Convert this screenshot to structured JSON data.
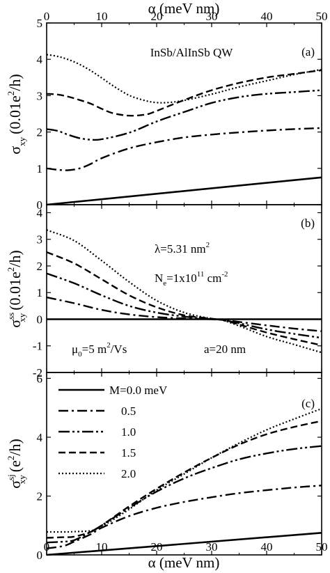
{
  "top_axis_label": "α (meV nm)",
  "bottom_axis_label": "α (meV nm)",
  "legend": {
    "title": "M=0.0  meV",
    "entries": [
      "0.5",
      "1.0",
      "1.5",
      "2.0"
    ]
  },
  "chart_data": [
    {
      "panel": "(a)",
      "type": "line",
      "annotation": "InSb/AlInSb QW",
      "ylabel": {
        "sym": "σ",
        "sub": "xy",
        "rest": "(0.01e",
        "sup": "2",
        "tail": "/h)"
      },
      "xlim": [
        0,
        50
      ],
      "ylim": [
        0,
        5
      ],
      "xticks": [
        0,
        10,
        20,
        30,
        40,
        50
      ],
      "yticks": [
        0,
        1,
        2,
        3,
        4,
        5
      ],
      "series": [
        {
          "name": "M=0.0  meV",
          "x": [
            0,
            50
          ],
          "y": [
            0.0,
            0.75
          ]
        },
        {
          "name": "0.5",
          "x": [
            0,
            2,
            4,
            6,
            8,
            10,
            15,
            20,
            25,
            30,
            35,
            40,
            45,
            50
          ],
          "y": [
            1.0,
            0.96,
            0.95,
            1.0,
            1.12,
            1.28,
            1.55,
            1.72,
            1.85,
            1.93,
            1.99,
            2.04,
            2.08,
            2.11
          ]
        },
        {
          "name": "1.0",
          "x": [
            0,
            2,
            4,
            6,
            8,
            10,
            15,
            20,
            25,
            30,
            35,
            40,
            45,
            50
          ],
          "y": [
            2.08,
            2.03,
            1.92,
            1.83,
            1.79,
            1.8,
            1.98,
            2.29,
            2.55,
            2.8,
            2.96,
            3.05,
            3.1,
            3.15
          ]
        },
        {
          "name": "1.5",
          "x": [
            0,
            2,
            4,
            6,
            8,
            10,
            12,
            15,
            18,
            20,
            25,
            30,
            35,
            40,
            45,
            50
          ],
          "y": [
            3.05,
            3.03,
            2.97,
            2.88,
            2.78,
            2.64,
            2.52,
            2.45,
            2.48,
            2.58,
            2.88,
            3.15,
            3.35,
            3.5,
            3.6,
            3.7
          ]
        },
        {
          "name": "2.0",
          "x": [
            0,
            2,
            4,
            6,
            8,
            10,
            12,
            15,
            18,
            20,
            22,
            25,
            30,
            35,
            40,
            45,
            50
          ],
          "y": [
            4.13,
            4.08,
            3.99,
            3.86,
            3.69,
            3.49,
            3.28,
            3.01,
            2.86,
            2.81,
            2.81,
            2.87,
            3.04,
            3.24,
            3.41,
            3.58,
            3.72
          ]
        }
      ]
    },
    {
      "panel": "(b)",
      "type": "line",
      "annotations": {
        "lambda": {
          "pre": "λ=5.31 nm",
          "sup": "2"
        },
        "ne": {
          "pre": "N",
          "sub": "e",
          "mid": "=1x10",
          "sup": "11",
          "post": " cm",
          "sup2": "-2"
        },
        "mu": {
          "pre": "μ",
          "sub": "0",
          "mid": "=5 m",
          "sup": "2",
          "post": "/Vs"
        },
        "a": "a=20 nm"
      },
      "ylabel": {
        "sym": "σ",
        "sub": "xy",
        "sup1": "ss",
        "rest": "(0.01e",
        "sup": "2",
        "tail": "/h)"
      },
      "xlim": [
        0,
        50
      ],
      "ylim": [
        -2,
        4.3
      ],
      "xticks": [
        0,
        10,
        20,
        30,
        40,
        50
      ],
      "yticks": [
        -2,
        -1,
        0,
        1,
        2,
        3,
        4
      ],
      "series": [
        {
          "name": "M=0.0  meV",
          "x": [
            0,
            50
          ],
          "y": [
            0,
            0
          ]
        },
        {
          "name": "0.5",
          "x": [
            0,
            5,
            10,
            15,
            20,
            25,
            30,
            32,
            35,
            40,
            45,
            50
          ],
          "y": [
            0.82,
            0.6,
            0.35,
            0.18,
            0.08,
            0.03,
            0.0,
            -0.02,
            -0.1,
            -0.23,
            -0.35,
            -0.45
          ]
        },
        {
          "name": "1.0",
          "x": [
            0,
            5,
            10,
            15,
            20,
            25,
            30,
            32,
            35,
            40,
            45,
            50
          ],
          "y": [
            1.72,
            1.35,
            0.9,
            0.5,
            0.25,
            0.1,
            0.0,
            -0.03,
            -0.15,
            -0.38,
            -0.55,
            -0.7
          ]
        },
        {
          "name": "1.5",
          "x": [
            0,
            5,
            10,
            15,
            20,
            25,
            30,
            32,
            35,
            40,
            45,
            50
          ],
          "y": [
            2.52,
            2.1,
            1.5,
            0.9,
            0.45,
            0.15,
            0.02,
            -0.03,
            -0.2,
            -0.5,
            -0.75,
            -0.98
          ]
        },
        {
          "name": "2.0",
          "x": [
            0,
            5,
            10,
            15,
            20,
            25,
            30,
            32,
            35,
            40,
            45,
            50
          ],
          "y": [
            3.35,
            2.95,
            2.2,
            1.4,
            0.7,
            0.25,
            0.02,
            -0.04,
            -0.25,
            -0.65,
            -0.95,
            -1.25
          ]
        }
      ]
    },
    {
      "panel": "(c)",
      "type": "line",
      "ylabel": {
        "sym": "σ",
        "sub": "xy",
        "sup1": "sj",
        "rest": "(e",
        "sup": "2",
        "tail": "/h)"
      },
      "xlabel": "α (meV nm)",
      "xlim": [
        0,
        50
      ],
      "ylim": [
        0,
        6.2
      ],
      "xticks": [
        0,
        10,
        20,
        30,
        40,
        50
      ],
      "yticks": [
        0,
        2,
        4,
        6
      ],
      "series": [
        {
          "name": "M=0.0  meV",
          "x": [
            0,
            50
          ],
          "y": [
            0.0,
            0.75
          ]
        },
        {
          "name": "0.5",
          "x": [
            0,
            3,
            5,
            8,
            10,
            15,
            20,
            25,
            30,
            35,
            40,
            45,
            50
          ],
          "y": [
            0.22,
            0.3,
            0.45,
            0.7,
            0.92,
            1.32,
            1.6,
            1.8,
            1.96,
            2.1,
            2.2,
            2.29,
            2.36
          ]
        },
        {
          "name": "1.0",
          "x": [
            0,
            3,
            5,
            8,
            10,
            15,
            20,
            25,
            30,
            35,
            40,
            45,
            50
          ],
          "y": [
            0.42,
            0.45,
            0.5,
            0.78,
            1.0,
            1.6,
            2.15,
            2.6,
            2.95,
            3.25,
            3.45,
            3.6,
            3.7
          ]
        },
        {
          "name": "1.5",
          "x": [
            0,
            3,
            5,
            8,
            10,
            15,
            20,
            25,
            30,
            35,
            40,
            45,
            50
          ],
          "y": [
            0.58,
            0.6,
            0.62,
            0.78,
            1.0,
            1.65,
            2.25,
            2.8,
            3.3,
            3.75,
            4.1,
            4.35,
            4.55
          ]
        },
        {
          "name": "2.0",
          "x": [
            0,
            3,
            5,
            8,
            10,
            15,
            20,
            25,
            30,
            35,
            40,
            45,
            50
          ],
          "y": [
            0.78,
            0.78,
            0.79,
            0.82,
            0.96,
            1.55,
            2.2,
            2.75,
            3.3,
            3.8,
            4.25,
            4.62,
            4.97
          ]
        }
      ]
    }
  ]
}
